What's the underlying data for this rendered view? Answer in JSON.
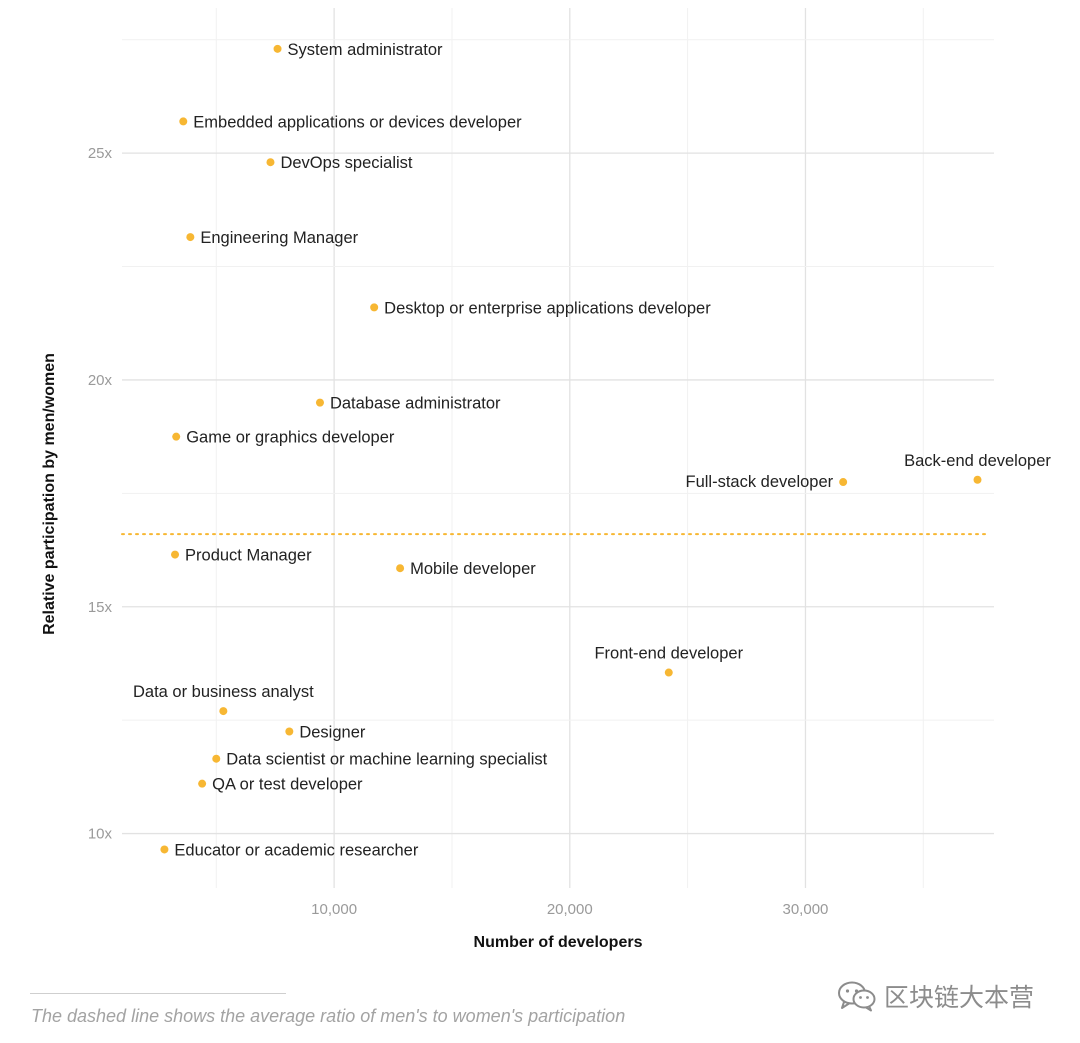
{
  "chart_data": {
    "type": "scatter",
    "title": "",
    "xlabel": "Number of developers",
    "ylabel": "Relative participation by men/women",
    "xlim": [
      1000,
      38000
    ],
    "ylim": [
      8.8,
      28.2
    ],
    "xticks": [
      10000,
      20000,
      30000
    ],
    "xtick_labels": [
      "10,000",
      "20,000",
      "30,000"
    ],
    "yticks": [
      10,
      15,
      20,
      25
    ],
    "ytick_labels": [
      "10x",
      "15x",
      "20x",
      "25x"
    ],
    "grid": true,
    "average_line": 16.6,
    "points": [
      {
        "label": "System administrator",
        "x": 7600,
        "y": 27.3,
        "label_pos": "right"
      },
      {
        "label": "Embedded applications or devices developer",
        "x": 3600,
        "y": 25.7,
        "label_pos": "right"
      },
      {
        "label": "DevOps specialist",
        "x": 7300,
        "y": 24.8,
        "label_pos": "right"
      },
      {
        "label": "Engineering Manager",
        "x": 3900,
        "y": 23.15,
        "label_pos": "right"
      },
      {
        "label": "Desktop or enterprise applications developer",
        "x": 11700,
        "y": 21.6,
        "label_pos": "right"
      },
      {
        "label": "Database administrator",
        "x": 9400,
        "y": 19.5,
        "label_pos": "right"
      },
      {
        "label": "Game or graphics developer",
        "x": 3300,
        "y": 18.75,
        "label_pos": "right"
      },
      {
        "label": "Back-end developer",
        "x": 37300,
        "y": 17.8,
        "label_pos": "above"
      },
      {
        "label": "Full-stack developer",
        "x": 31600,
        "y": 17.75,
        "label_pos": "left"
      },
      {
        "label": "Product Manager",
        "x": 3250,
        "y": 16.15,
        "label_pos": "right"
      },
      {
        "label": "Mobile developer",
        "x": 12800,
        "y": 15.85,
        "label_pos": "right"
      },
      {
        "label": "Front-end developer",
        "x": 24200,
        "y": 13.55,
        "label_pos": "above"
      },
      {
        "label": "Data or business analyst",
        "x": 5300,
        "y": 12.7,
        "label_pos": "above"
      },
      {
        "label": "Designer",
        "x": 8100,
        "y": 12.25,
        "label_pos": "right"
      },
      {
        "label": "Data scientist or machine learning specialist",
        "x": 5000,
        "y": 11.65,
        "label_pos": "right"
      },
      {
        "label": "QA or test developer",
        "x": 4400,
        "y": 11.1,
        "label_pos": "right"
      },
      {
        "label": "Educator or academic researcher",
        "x": 2800,
        "y": 9.65,
        "label_pos": "right"
      }
    ],
    "colors": {
      "point": "#f7b733",
      "average_line": "#f7b733",
      "grid": "#e2e2e2",
      "grid_minor": "#f1f1f1",
      "tick_label": "#9a9a9a",
      "point_label": "#222222",
      "axis_title": "#111111"
    }
  },
  "caption": "The dashed line shows the average ratio of men's to women's participation",
  "watermark": {
    "text": "区块链大本营",
    "icon": "wechat-icon"
  }
}
